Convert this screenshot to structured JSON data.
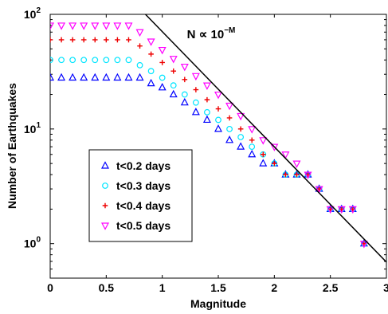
{
  "chart_data": {
    "type": "scatter",
    "xlabel": "Magnitude",
    "ylabel": "Number of Earthquakes",
    "xlim": [
      0,
      3
    ],
    "ylim": [
      0.5,
      100
    ],
    "y_scale": "log",
    "x_ticks": [
      0,
      0.5,
      1,
      1.5,
      2,
      2.5,
      3
    ],
    "x_tick_labels": [
      "0",
      "0.5",
      "1",
      "1.5",
      "2",
      "2.5",
      "3"
    ],
    "y_ticks": [
      1,
      10,
      100
    ],
    "y_tick_bases": [
      "10",
      "10",
      "10"
    ],
    "y_tick_exps": [
      "0",
      "1",
      "2"
    ],
    "annotation": {
      "prefix": "N ∝ 10",
      "exponent": "−M",
      "x": 1.22,
      "y": 62
    },
    "legend_position": "center-left",
    "series": [
      {
        "name": "t<0.2 days",
        "marker": "triangle-up",
        "color": "#0000ff",
        "points": [
          [
            0.0,
            28
          ],
          [
            0.1,
            28
          ],
          [
            0.2,
            28
          ],
          [
            0.3,
            28
          ],
          [
            0.4,
            28
          ],
          [
            0.5,
            28
          ],
          [
            0.6,
            28
          ],
          [
            0.7,
            28
          ],
          [
            0.8,
            28
          ],
          [
            0.9,
            25
          ],
          [
            1.0,
            23
          ],
          [
            1.1,
            20
          ],
          [
            1.2,
            17
          ],
          [
            1.3,
            14
          ],
          [
            1.4,
            12
          ],
          [
            1.5,
            10
          ],
          [
            1.6,
            8
          ],
          [
            1.7,
            7
          ],
          [
            1.8,
            6
          ],
          [
            1.9,
            5
          ],
          [
            2.0,
            5
          ],
          [
            2.1,
            4
          ],
          [
            2.2,
            4
          ],
          [
            2.3,
            4
          ],
          [
            2.4,
            3
          ],
          [
            2.5,
            2
          ],
          [
            2.6,
            2
          ],
          [
            2.7,
            2
          ],
          [
            2.8,
            1
          ]
        ]
      },
      {
        "name": "t<0.3 days",
        "marker": "circle",
        "color": "#00e5ff",
        "points": [
          [
            0.0,
            40
          ],
          [
            0.1,
            40
          ],
          [
            0.2,
            40
          ],
          [
            0.3,
            40
          ],
          [
            0.4,
            40
          ],
          [
            0.5,
            40
          ],
          [
            0.6,
            40
          ],
          [
            0.7,
            40
          ],
          [
            0.8,
            36
          ],
          [
            0.9,
            32
          ],
          [
            1.0,
            28
          ],
          [
            1.1,
            24
          ],
          [
            1.2,
            20
          ],
          [
            1.3,
            17
          ],
          [
            1.4,
            14
          ],
          [
            1.5,
            12
          ],
          [
            1.6,
            10
          ],
          [
            1.7,
            8.5
          ],
          [
            1.8,
            7
          ],
          [
            1.9,
            6
          ],
          [
            2.0,
            5
          ],
          [
            2.1,
            4
          ],
          [
            2.2,
            4
          ],
          [
            2.3,
            4
          ],
          [
            2.4,
            3
          ],
          [
            2.5,
            2
          ],
          [
            2.6,
            2
          ],
          [
            2.7,
            2
          ],
          [
            2.8,
            1
          ]
        ]
      },
      {
        "name": "t<0.4 days",
        "marker": "plus",
        "color": "#ee0000",
        "points": [
          [
            0.0,
            60
          ],
          [
            0.1,
            60
          ],
          [
            0.2,
            60
          ],
          [
            0.3,
            60
          ],
          [
            0.4,
            60
          ],
          [
            0.5,
            60
          ],
          [
            0.6,
            60
          ],
          [
            0.7,
            60
          ],
          [
            0.8,
            53
          ],
          [
            0.9,
            45
          ],
          [
            1.0,
            38
          ],
          [
            1.1,
            32
          ],
          [
            1.2,
            27
          ],
          [
            1.3,
            22
          ],
          [
            1.4,
            18
          ],
          [
            1.5,
            15
          ],
          [
            1.6,
            12.5
          ],
          [
            1.7,
            10
          ],
          [
            1.8,
            8
          ],
          [
            1.9,
            6
          ],
          [
            2.0,
            5
          ],
          [
            2.1,
            4
          ],
          [
            2.2,
            4
          ],
          [
            2.3,
            4
          ],
          [
            2.4,
            3
          ],
          [
            2.5,
            2
          ],
          [
            2.6,
            2
          ],
          [
            2.7,
            2
          ],
          [
            2.8,
            1
          ]
        ]
      },
      {
        "name": "t<0.5 days",
        "marker": "triangle-down",
        "color": "#ff00ff",
        "points": [
          [
            0.0,
            80
          ],
          [
            0.1,
            80
          ],
          [
            0.2,
            80
          ],
          [
            0.3,
            80
          ],
          [
            0.4,
            80
          ],
          [
            0.5,
            80
          ],
          [
            0.6,
            80
          ],
          [
            0.7,
            80
          ],
          [
            0.8,
            70
          ],
          [
            0.9,
            58
          ],
          [
            1.0,
            49
          ],
          [
            1.1,
            41
          ],
          [
            1.2,
            35
          ],
          [
            1.3,
            29
          ],
          [
            1.4,
            24
          ],
          [
            1.5,
            20
          ],
          [
            1.6,
            16
          ],
          [
            1.7,
            13
          ],
          [
            1.8,
            10
          ],
          [
            1.9,
            8
          ],
          [
            2.0,
            7
          ],
          [
            2.1,
            6
          ],
          [
            2.2,
            5
          ],
          [
            2.3,
            4
          ],
          [
            2.4,
            3
          ],
          [
            2.5,
            2
          ],
          [
            2.6,
            2
          ],
          [
            2.7,
            2
          ],
          [
            2.8,
            1
          ]
        ]
      }
    ],
    "fit_line": {
      "style": "solid",
      "color": "#000000",
      "points": [
        [
          0.85,
          100
        ],
        [
          3.0,
          0.69
        ]
      ]
    }
  }
}
